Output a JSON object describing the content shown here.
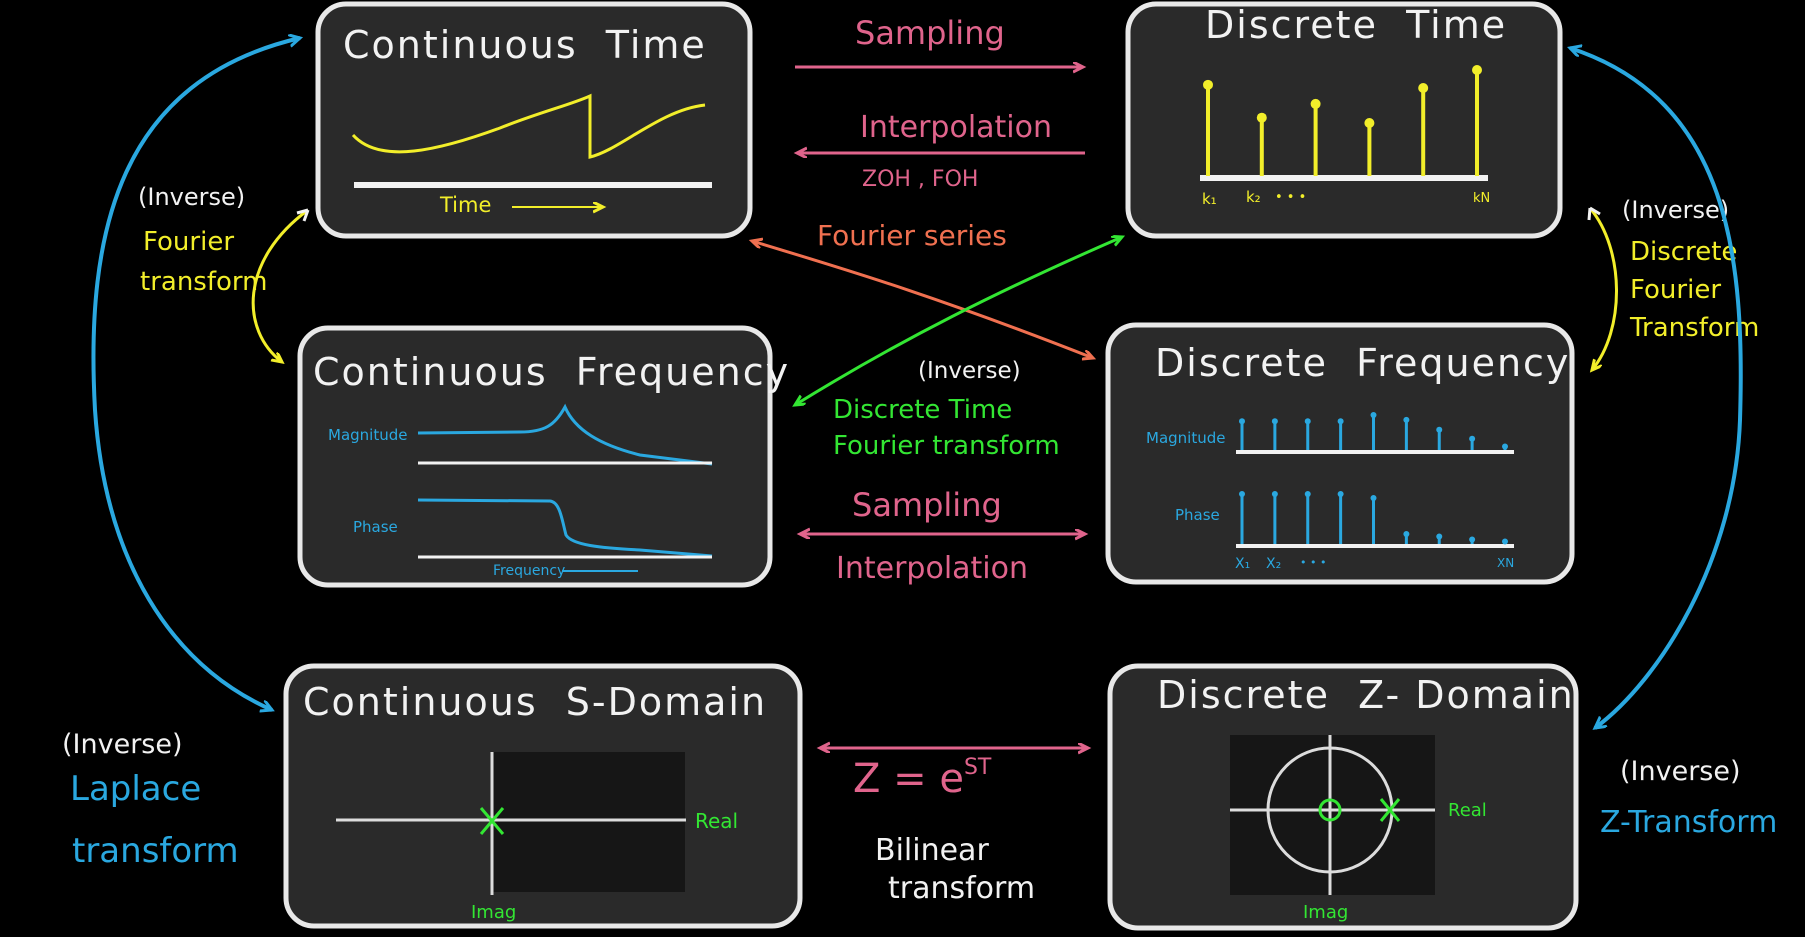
{
  "colors": {
    "background": "#000000",
    "box_fill": "#2a2a2a",
    "box_stroke": "#e8e8e8",
    "pink": "#e0648c",
    "orange": "#f07050",
    "green": "#33e633",
    "yellow": "#f2ee2a",
    "blue": "#2aa8e0",
    "white": "#f2f2f2"
  },
  "boxes": {
    "continuous_time": {
      "title": "Continuous  Time",
      "axis_label": "Time"
    },
    "discrete_time": {
      "title": "Discrete  Time",
      "k1": "k₁",
      "k2": "k₂",
      "dots": "• • •",
      "kn": "kN"
    },
    "continuous_frequency": {
      "title": "Continuous  Frequency",
      "magnitude": "Magnitude",
      "phase": "Phase",
      "frequency": "Frequency"
    },
    "discrete_frequency": {
      "title": "Discrete  Frequency",
      "magnitude": "Magnitude",
      "phase": "Phase",
      "x1": "X₁",
      "x2": "X₂",
      "dots": "• • •",
      "xn": "XN"
    },
    "s_domain": {
      "title": "Continuous  S-Domain",
      "real": "Real",
      "imag": "Imag"
    },
    "z_domain": {
      "title": "Discrete  Z- Domain",
      "real": "Real",
      "imag": "Imag"
    }
  },
  "arrows": {
    "sampling_top": "Sampling",
    "interpolation_top": "Interpolation",
    "zoh_foh": "ZOH , FOH",
    "fourier_series": "Fourier series",
    "dtft_inverse": "(Inverse)",
    "dtft_line1": "Discrete Time",
    "dtft_line2": "Fourier transform",
    "sampling_mid": "Sampling",
    "interpolation_mid": "Interpolation",
    "z_equals": "Z = e",
    "z_exp": "ST",
    "bilinear_line1": "Bilinear",
    "bilinear_line2": "transform"
  },
  "side_labels": {
    "ft_inverse": "(Inverse)",
    "ft_line1": "Fourier",
    "ft_line2": "transform",
    "dft_inverse": "(Inverse)",
    "dft_line1": "Discrete",
    "dft_line2": "Fourier",
    "dft_line3": "Transform",
    "laplace_inverse": "(Inverse)",
    "laplace_line1": "Laplace",
    "laplace_line2": "transform",
    "zt_inverse": "(Inverse)",
    "zt_line1": "Z-Transform"
  },
  "stems": {
    "discrete_time": [
      0.86,
      0.55,
      0.68,
      0.5,
      0.83,
      1.0
    ],
    "dfreq_magnitude": [
      0.82,
      0.82,
      0.82,
      0.82,
      1.0,
      0.86,
      0.58,
      0.32,
      0.1
    ],
    "dfreq_phase": [
      1.0,
      1.0,
      1.0,
      1.0,
      0.92,
      0.2,
      0.15,
      0.09,
      0.05
    ]
  }
}
